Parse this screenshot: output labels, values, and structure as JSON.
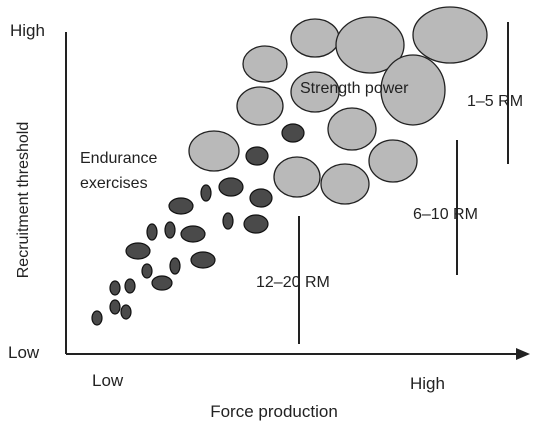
{
  "diagram": {
    "y_axis": {
      "label": "Recruitment threshold",
      "high": "High",
      "low": "Low"
    },
    "x_axis": {
      "label": "Force production",
      "low": "Low",
      "high": "High"
    },
    "regions": {
      "endurance": "Endurance\nexercises",
      "strength": "Strength power"
    },
    "rep_ranges": [
      "12–20 RM",
      "6–10 RM",
      "1–5 RM"
    ],
    "colors": {
      "small_units": "#4a4a4a",
      "large_units": "#b9b9b9",
      "outline": "#222222"
    }
  }
}
